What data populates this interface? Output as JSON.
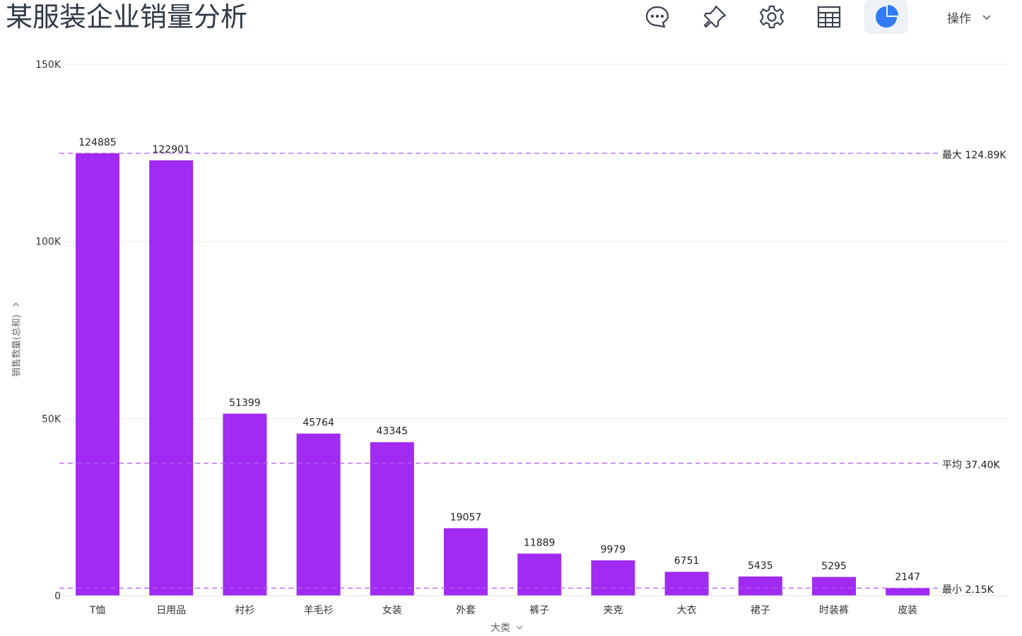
{
  "header": {
    "title": "某服装企业销量分析",
    "operations_label": "操作",
    "tools": [
      {
        "name": "comment-icon"
      },
      {
        "name": "pin-icon"
      },
      {
        "name": "gear-icon"
      },
      {
        "name": "table-icon"
      },
      {
        "name": "pie-chart-icon",
        "active": true
      }
    ]
  },
  "chart_data": {
    "type": "bar",
    "title": "",
    "xlabel": "大类",
    "ylabel": "销售数量(总和)",
    "categories": [
      "T恤",
      "日用品",
      "衬衫",
      "羊毛衫",
      "女装",
      "外套",
      "裤子",
      "夹克",
      "大衣",
      "裙子",
      "时装裤",
      "皮装"
    ],
    "values": [
      124885,
      122901,
      51399,
      45764,
      43345,
      19057,
      11889,
      9979,
      6751,
      5435,
      5295,
      2147
    ],
    "ylim": [
      0,
      150000
    ],
    "yticks": [
      {
        "value": 0,
        "label": "0"
      },
      {
        "value": 50000,
        "label": "50K"
      },
      {
        "value": 100000,
        "label": "100K"
      },
      {
        "value": 150000,
        "label": "150K"
      }
    ],
    "bar_color": "#a12bf2",
    "reference_lines": [
      {
        "label": "最大 124.89K",
        "value": 124885
      },
      {
        "label": "平均 37.40K",
        "value": 37404
      },
      {
        "label": "最小 2.15K",
        "value": 2147
      }
    ],
    "reference_color": "#b25cf0",
    "grid": true
  }
}
